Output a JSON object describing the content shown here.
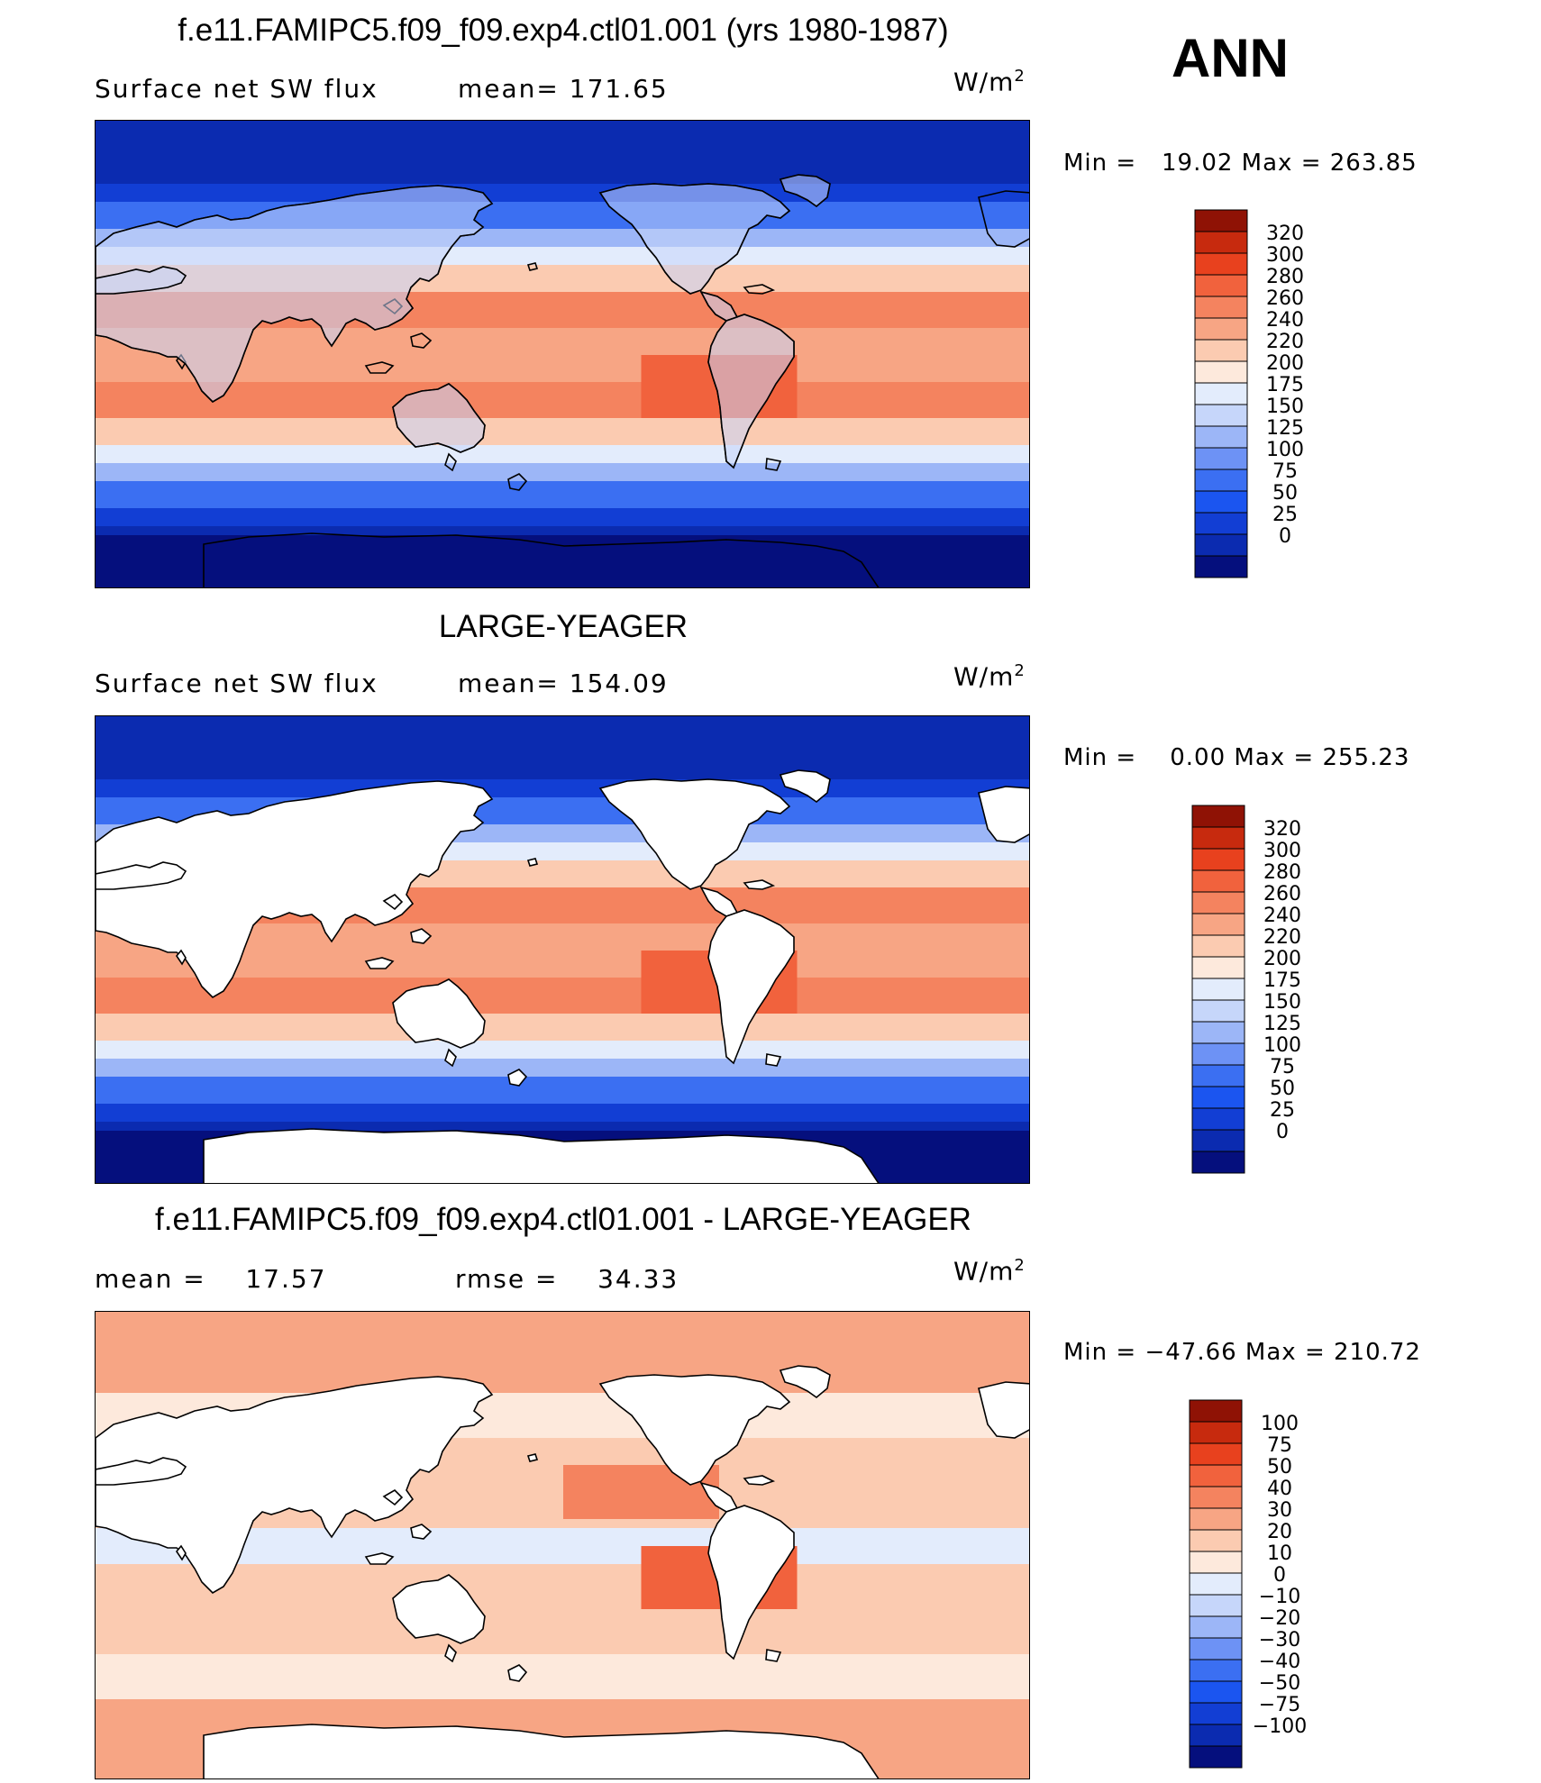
{
  "season_label": "ANN",
  "colors": {
    "abs": [
      "#050f7d",
      "#0b2bb0",
      "#123ed4",
      "#1b55f0",
      "#3b6ff2",
      "#6d92f5",
      "#9cb6f7",
      "#c6d6fa",
      "#e3ecfc",
      "#fde9dc",
      "#fbcbb1",
      "#f7a584",
      "#f4835f",
      "#f1623d",
      "#e8411e",
      "#c72a0e",
      "#8f1205"
    ],
    "diff": [
      "#050f7d",
      "#0b2bb0",
      "#123ed4",
      "#1b55f0",
      "#3b6ff2",
      "#6d92f5",
      "#9cb6f7",
      "#c6d6fa",
      "#e3ecfc",
      "#fde9dc",
      "#fbcbb1",
      "#f7a584",
      "#f4835f",
      "#f1623d",
      "#e8411e",
      "#c72a0e",
      "#8f1205"
    ],
    "land": "#ffffff",
    "coast": "#000000"
  },
  "panels": [
    {
      "title": "f.e11.FAMIPC5.f09_f09.exp4.ctl01.001 (yrs 1980-1987)",
      "sub_left": "Surface net SW flux",
      "sub_right": "mean= 171.65",
      "units_base": "W/m",
      "units_exp": "2",
      "minmax": "Min =   19.02 Max = 263.85",
      "land_masked": false,
      "scale": "abs",
      "levels": [
        "320",
        "300",
        "280",
        "260",
        "240",
        "220",
        "200",
        "175",
        "150",
        "125",
        "100",
        "75",
        "50",
        "25",
        "0"
      ]
    },
    {
      "title": "LARGE-YEAGER",
      "sub_left": "Surface net SW flux",
      "sub_right": "mean= 154.09",
      "units_base": "W/m",
      "units_exp": "2",
      "minmax": "Min =    0.00 Max = 255.23",
      "land_masked": true,
      "scale": "abs",
      "levels": [
        "320",
        "300",
        "280",
        "260",
        "240",
        "220",
        "200",
        "175",
        "150",
        "125",
        "100",
        "75",
        "50",
        "25",
        "0"
      ]
    },
    {
      "title": "f.e11.FAMIPC5.f09_f09.exp4.ctl01.001 - LARGE-YEAGER",
      "sub_left": "mean =    17.57",
      "sub_right": "rmse =    34.33",
      "units_base": "W/m",
      "units_exp": "2",
      "minmax": "Min = −47.66 Max = 210.72",
      "land_masked": true,
      "scale": "diff",
      "levels": [
        "100",
        "75",
        "50",
        "40",
        "30",
        "20",
        "10",
        "0",
        "−10",
        "−20",
        "−30",
        "−40",
        "−50",
        "−75",
        "−100"
      ]
    }
  ]
}
